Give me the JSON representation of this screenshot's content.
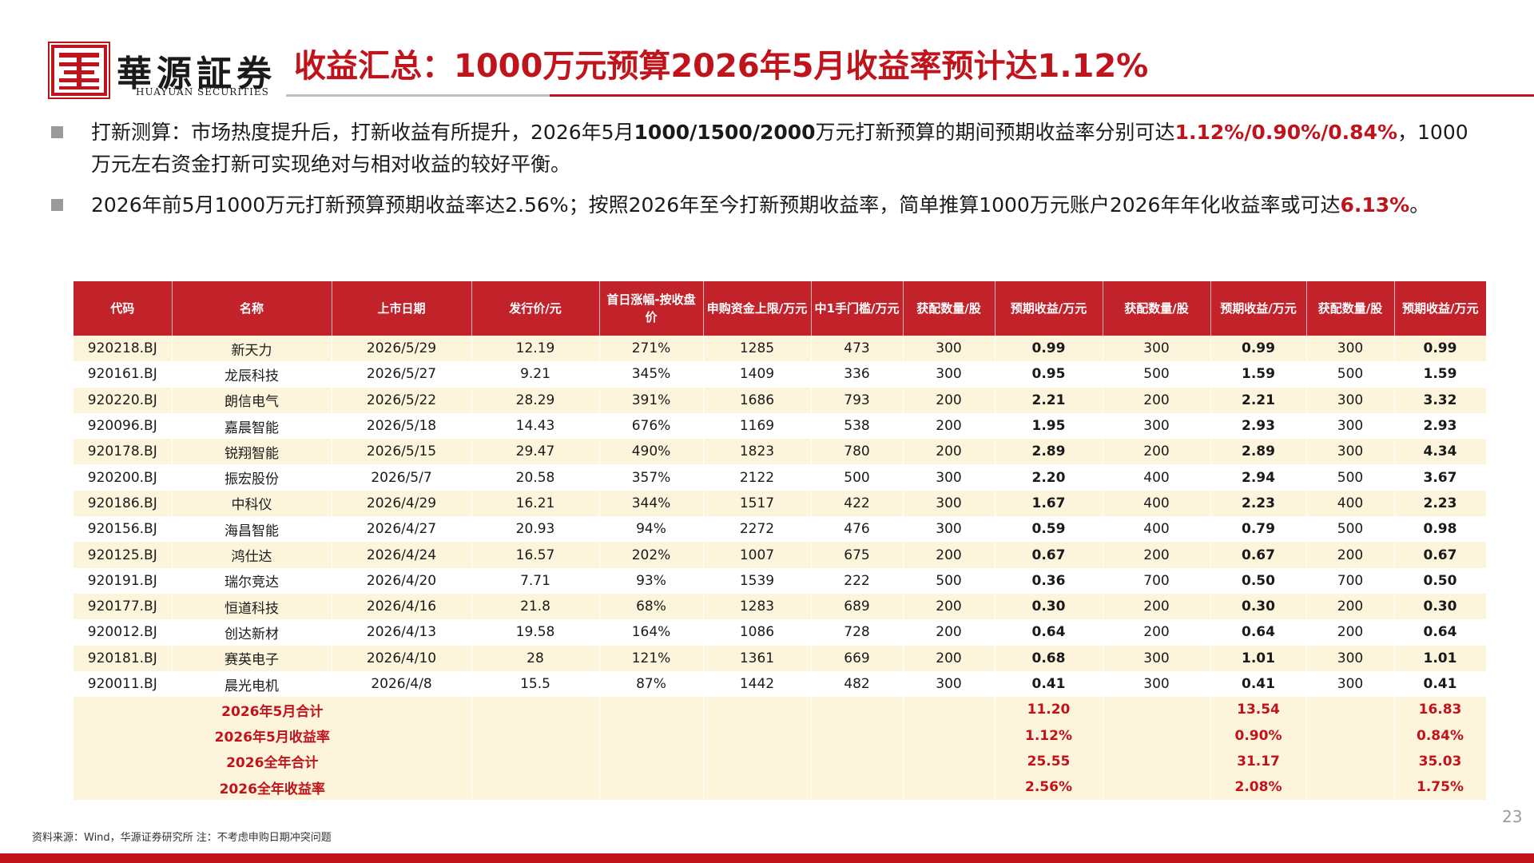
{
  "brand": {
    "name_cn": "華源証券",
    "name_en": "HUAYUAN SECURITIES",
    "accent_color": "#c0141c"
  },
  "title": "收益汇总：1000万元预算2026年5月收益率预计达1.12%",
  "bullets": [
    {
      "parts": [
        {
          "text": "打新测算：市场热度提升后，打新收益有所提升，2026年5月",
          "style": "normal"
        },
        {
          "text": "1000/1500/2000",
          "style": "strong"
        },
        {
          "text": "万元打新预算的期间预期收益率分别可达",
          "style": "normal"
        },
        {
          "text": "1.12%/0.90%/0.84%",
          "style": "red"
        },
        {
          "text": "，1000万元左右资金打新可实现绝对与相对收益的较好平衡。",
          "style": "normal"
        }
      ]
    },
    {
      "parts": [
        {
          "text": "2026年前5月1000万元打新预算预期收益率达2.56%；按照2026年至今打新预期收益率，简单推算1000万元账户2026年年化收益率或可达",
          "style": "normal"
        },
        {
          "text": "6.13%",
          "style": "red"
        },
        {
          "text": "。",
          "style": "normal"
        }
      ]
    }
  ],
  "table": {
    "headers": [
      "代码",
      "名称",
      "上市日期",
      "发行价/元",
      "首日涨幅-按收盘价",
      "申购资金上限/万元",
      "中1手门槛/万元",
      "获配数量/股",
      "预期收益/万元",
      "获配数量/股",
      "预期收益/万元",
      "获配数量/股",
      "预期收益/万元"
    ],
    "rows": [
      [
        "920218.BJ",
        "新天力",
        "2026/5/29",
        "12.19",
        "271%",
        "1285",
        "473",
        "300",
        "0.99",
        "300",
        "0.99",
        "300",
        "0.99"
      ],
      [
        "920161.BJ",
        "龙辰科技",
        "2026/5/27",
        "9.21",
        "345%",
        "1409",
        "336",
        "300",
        "0.95",
        "500",
        "1.59",
        "500",
        "1.59"
      ],
      [
        "920220.BJ",
        "朗信电气",
        "2026/5/22",
        "28.29",
        "391%",
        "1686",
        "793",
        "200",
        "2.21",
        "200",
        "2.21",
        "300",
        "3.32"
      ],
      [
        "920096.BJ",
        "嘉晨智能",
        "2026/5/18",
        "14.43",
        "676%",
        "1169",
        "538",
        "200",
        "1.95",
        "300",
        "2.93",
        "300",
        "2.93"
      ],
      [
        "920178.BJ",
        "锐翔智能",
        "2026/5/15",
        "29.47",
        "490%",
        "1823",
        "780",
        "200",
        "2.89",
        "200",
        "2.89",
        "300",
        "4.34"
      ],
      [
        "920200.BJ",
        "振宏股份",
        "2026/5/7",
        "20.58",
        "357%",
        "2122",
        "500",
        "300",
        "2.20",
        "400",
        "2.94",
        "500",
        "3.67"
      ],
      [
        "920186.BJ",
        "中科仪",
        "2026/4/29",
        "16.21",
        "344%",
        "1517",
        "422",
        "300",
        "1.67",
        "400",
        "2.23",
        "400",
        "2.23"
      ],
      [
        "920156.BJ",
        "海昌智能",
        "2026/4/27",
        "20.93",
        "94%",
        "2272",
        "476",
        "300",
        "0.59",
        "400",
        "0.79",
        "500",
        "0.98"
      ],
      [
        "920125.BJ",
        "鸿仕达",
        "2026/4/24",
        "16.57",
        "202%",
        "1007",
        "675",
        "200",
        "0.67",
        "200",
        "0.67",
        "200",
        "0.67"
      ],
      [
        "920191.BJ",
        "瑞尔竞达",
        "2026/4/20",
        "7.71",
        "93%",
        "1539",
        "222",
        "500",
        "0.36",
        "700",
        "0.50",
        "700",
        "0.50"
      ],
      [
        "920177.BJ",
        "恒道科技",
        "2026/4/16",
        "21.8",
        "68%",
        "1283",
        "689",
        "200",
        "0.30",
        "200",
        "0.30",
        "200",
        "0.30"
      ],
      [
        "920012.BJ",
        "创达新材",
        "2026/4/13",
        "19.58",
        "164%",
        "1086",
        "728",
        "200",
        "0.64",
        "200",
        "0.64",
        "200",
        "0.64"
      ],
      [
        "920181.BJ",
        "赛英电子",
        "2026/4/10",
        "28",
        "121%",
        "1361",
        "669",
        "200",
        "0.68",
        "300",
        "1.01",
        "300",
        "1.01"
      ],
      [
        "920011.BJ",
        "晨光电机",
        "2026/4/8",
        "15.5",
        "87%",
        "1442",
        "482",
        "300",
        "0.41",
        "300",
        "0.41",
        "300",
        "0.41"
      ]
    ],
    "summary": [
      {
        "label": "2026年5月合计",
        "values": [
          "11.20",
          "13.54",
          "16.83"
        ]
      },
      {
        "label": "2026年5月收益率",
        "values": [
          "1.12%",
          "0.90%",
          "0.84%"
        ]
      },
      {
        "label": "2026全年合计",
        "values": [
          "25.55",
          "31.17",
          "35.03"
        ]
      },
      {
        "label": "2026全年收益率",
        "values": [
          "2.56%",
          "2.08%",
          "1.75%"
        ]
      }
    ]
  },
  "footnote": "资料来源：Wind，华源证券研究所   注：不考虑申购日期冲突问题",
  "page_number": "23"
}
